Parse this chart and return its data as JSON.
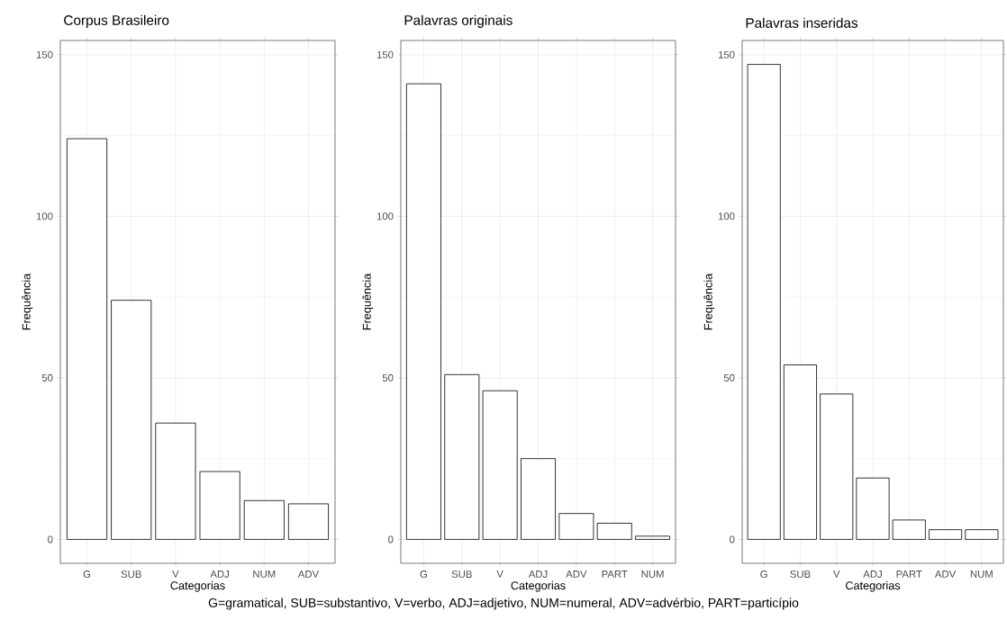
{
  "chart_data": [
    {
      "type": "bar",
      "title": "Corpus Brasileiro",
      "xlabel": "Categorias",
      "ylabel": "Frequência",
      "categories": [
        "G",
        "SUB",
        "V",
        "ADJ",
        "NUM",
        "ADV"
      ],
      "values": [
        124,
        74,
        36,
        21,
        12,
        11
      ],
      "color": "#ffffff",
      "ylim": [
        -7.4,
        154.4
      ],
      "yticks": [
        0,
        50,
        100,
        150
      ],
      "grid": true,
      "annotations": [
        "G=gramatical, SUB=substantivo, V=verbo, ADJ=adjetivo, NUM=numeral, ADV=advérbio, PART=particípio"
      ]
    },
    {
      "type": "bar",
      "title": "Palavras originais",
      "xlabel": "Categorias",
      "ylabel": "Frequência",
      "categories": [
        "G",
        "SUB",
        "V",
        "ADJ",
        "ADV",
        "PART",
        "NUM"
      ],
      "values": [
        141,
        51,
        46,
        25,
        8,
        5,
        1
      ],
      "color": "#ffffff",
      "ylim": [
        -7.4,
        154.4
      ],
      "yticks": [
        0,
        50,
        100,
        150
      ],
      "grid": true
    },
    {
      "type": "bar",
      "title": "Palavras inseridas",
      "xlabel": "Categorias",
      "ylabel": "Frequência",
      "categories": [
        "G",
        "SUB",
        "V",
        "ADJ",
        "PART",
        "ADV",
        "NUM"
      ],
      "values": [
        147,
        54,
        45,
        19,
        6,
        3,
        3
      ],
      "color": "#ffffff",
      "ylim": [
        -7.4,
        154.4
      ],
      "yticks": [
        0,
        50,
        100,
        150
      ],
      "grid": true
    }
  ]
}
